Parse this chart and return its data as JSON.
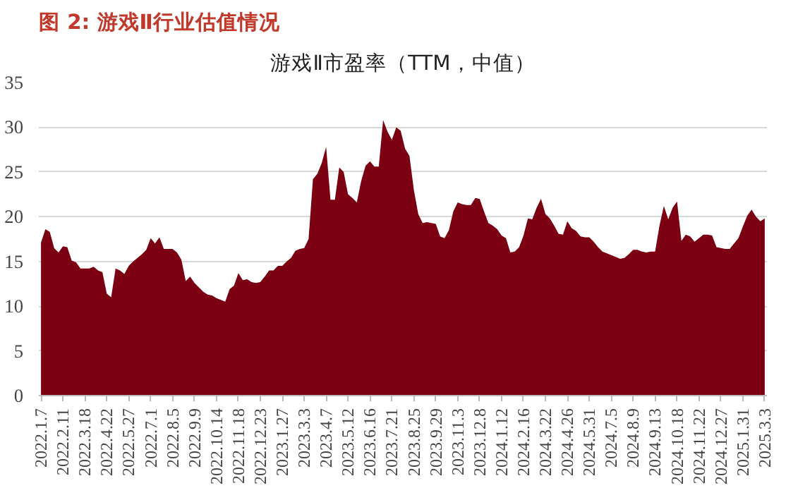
{
  "chart_data": {
    "type": "area",
    "title": "图 2: 游戏Ⅱ行业估值情况",
    "subtitle": "游戏Ⅱ市盈率（TTM，中值）",
    "categories": [
      "2022.1.7",
      null,
      null,
      null,
      null,
      "2022.2.11",
      null,
      null,
      null,
      null,
      "2022.3.18",
      null,
      null,
      null,
      null,
      "2022.4.22",
      null,
      null,
      null,
      null,
      "2022.5.27",
      null,
      null,
      null,
      null,
      "2022.7.1",
      null,
      null,
      null,
      null,
      "2022.8.5",
      null,
      null,
      null,
      null,
      "2022.9.9",
      null,
      null,
      null,
      null,
      "2022.10.14",
      null,
      null,
      null,
      null,
      "2022.11.18",
      null,
      null,
      null,
      null,
      "2022.12.23",
      null,
      null,
      null,
      null,
      "2023.1.27",
      null,
      null,
      null,
      null,
      "2023.3.3",
      null,
      null,
      null,
      null,
      "2023.4.7",
      null,
      null,
      null,
      null,
      "2023.5.12",
      null,
      null,
      null,
      null,
      "2023.6.16",
      null,
      null,
      null,
      null,
      "2023.7.21",
      null,
      null,
      null,
      null,
      "2023.8.25",
      null,
      null,
      null,
      null,
      "2023.9.29",
      null,
      null,
      null,
      null,
      "2023.11.3",
      null,
      null,
      null,
      null,
      "2023.12.8",
      null,
      null,
      null,
      null,
      "2024.1.12",
      null,
      null,
      null,
      null,
      "2024.2.16",
      null,
      null,
      null,
      null,
      "2024.3.22",
      null,
      null,
      null,
      null,
      "2024.4.26",
      null,
      null,
      null,
      null,
      "2024.5.31",
      null,
      null,
      null,
      null,
      "2024.7.5",
      null,
      null,
      null,
      null,
      "2024.8.9",
      null,
      null,
      null,
      null,
      "2024.9.13",
      null,
      null,
      null,
      null,
      "2024.10.18",
      null,
      null,
      null,
      null,
      "2024.11.22",
      null,
      null,
      null,
      null,
      "2024.12.27",
      null,
      null,
      null,
      null,
      "2025.1.31",
      null,
      null,
      null,
      null,
      "2025.3.3"
    ],
    "values": [
      17.1,
      18.6,
      18.3,
      16.5,
      16.0,
      16.7,
      16.6,
      15.1,
      14.9,
      14.2,
      14.2,
      14.2,
      14.4,
      14.0,
      13.8,
      11.4,
      11.0,
      14.2,
      14.0,
      13.6,
      14.5,
      15.0,
      15.4,
      15.8,
      16.3,
      17.6,
      17.0,
      17.7,
      16.4,
      16.4,
      16.4,
      16.0,
      15.2,
      12.8,
      13.3,
      12.6,
      12.1,
      11.6,
      11.3,
      11.2,
      10.9,
      10.7,
      10.5,
      11.9,
      12.3,
      13.7,
      12.9,
      13.0,
      12.7,
      12.6,
      12.7,
      13.3,
      14.0,
      14.0,
      14.5,
      14.5,
      15.0,
      15.4,
      16.2,
      16.4,
      16.5,
      17.5,
      24.2,
      24.8,
      26.0,
      27.8,
      21.9,
      21.9,
      25.5,
      25.0,
      22.5,
      22.1,
      21.6,
      24.0,
      25.7,
      26.2,
      25.6,
      25.6,
      30.8,
      29.5,
      28.6,
      30.0,
      29.6,
      27.6,
      26.8,
      23.0,
      20.3,
      19.3,
      19.4,
      19.3,
      19.2,
      17.8,
      17.6,
      18.5,
      20.6,
      21.6,
      21.4,
      21.3,
      21.3,
      22.1,
      22.0,
      20.6,
      19.3,
      19.0,
      18.6,
      17.9,
      17.6,
      16.0,
      16.1,
      16.6,
      17.9,
      19.8,
      19.7,
      21.0,
      22.0,
      20.3,
      19.8,
      19.0,
      18.1,
      18.0,
      19.5,
      18.7,
      18.4,
      17.8,
      17.7,
      17.7,
      17.2,
      16.6,
      16.1,
      15.9,
      15.7,
      15.5,
      15.3,
      15.4,
      15.8,
      16.3,
      16.3,
      16.1,
      16.0,
      16.1,
      16.1,
      19.0,
      21.2,
      19.7,
      21.0,
      21.7,
      17.3,
      18.0,
      17.8,
      17.2,
      17.6,
      18.0,
      18.0,
      17.9,
      16.6,
      16.5,
      16.4,
      16.4,
      17.0,
      17.6,
      18.9,
      20.1,
      20.8,
      20.0,
      19.5,
      19.8
    ],
    "color": "#7b0012",
    "ylim": [
      0,
      35
    ],
    "yticks": [
      0,
      5,
      10,
      15,
      20,
      25,
      30,
      35
    ],
    "grid": "y"
  }
}
